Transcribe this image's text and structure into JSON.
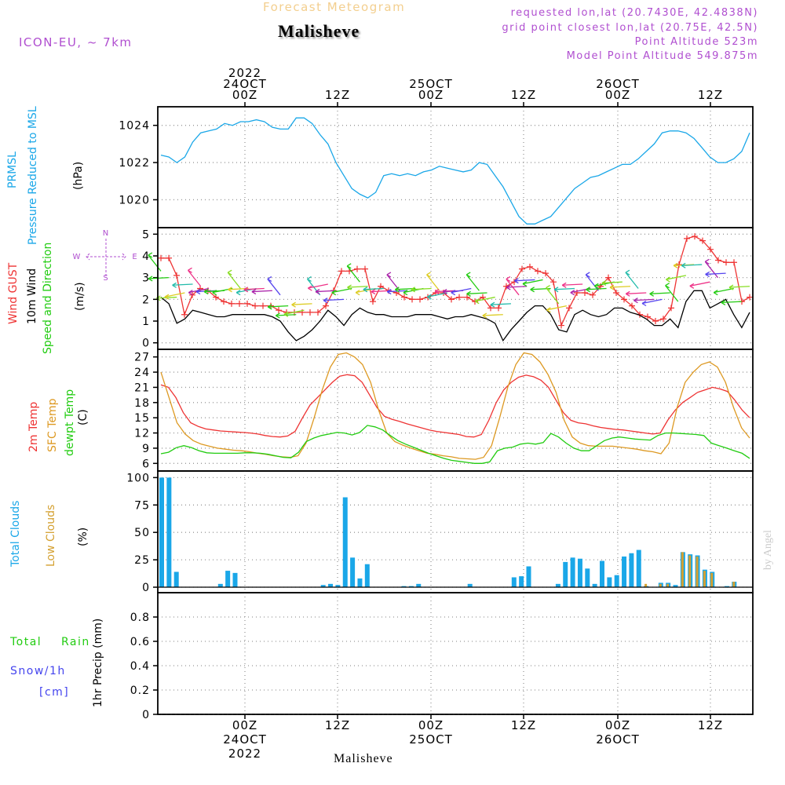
{
  "header": {
    "supertitle": "Forecast Meteogram",
    "title": "Malisheve",
    "model": "ICON-EU, ~ 7km",
    "requested": "requested lon,lat (20.7430E, 42.4838N)",
    "gridpoint": "grid point closest lon,lat (20.75E, 42.5N)",
    "point_alt": "Point Altitude 523m",
    "model_alt": "Model Point Altitude 549.875m",
    "footer": "Malisheve",
    "credit": "by Angel"
  },
  "colors": {
    "pressure": "#1aa7e8",
    "gust": "#ee3333",
    "wind": "#000000",
    "temp2m": "#ee3333",
    "sfc": "#dd9922",
    "dewpt": "#22cc11",
    "total_cloud": "#1aa7e8",
    "low_cloud": "#d4a030",
    "rain": "#22cc11",
    "snow": "#4444ee",
    "compass": "#b04fd0"
  },
  "labels": {
    "p1": [
      "PRMSL",
      "Pressure Reduced to MSL",
      "(hPa)"
    ],
    "p2": [
      "Wind GUST",
      "10m Wind",
      "Speed and Direction",
      "(m/s)"
    ],
    "p3": [
      "2m Temp",
      "SFC Temp",
      "dewpt Temp",
      "(C)"
    ],
    "p4": [
      "Total Clouds",
      "Low Clouds",
      "(%)"
    ],
    "p5": [
      "Total",
      "Rain",
      "Snow/1h",
      "[cm]",
      "1hr Precip (mm)"
    ],
    "compass": {
      "n": "N",
      "s": "S",
      "w": "W",
      "e": "E"
    }
  },
  "chart_data": {
    "type": "line",
    "x_start": "2022-10-23 06Z",
    "step": "1h",
    "x_ticks_top": [
      {
        "major": [
          "2022",
          "24OCT",
          "00Z"
        ]
      },
      {
        "major": [
          "12Z"
        ]
      },
      {
        "major": [
          "25OCT",
          "00Z"
        ]
      },
      {
        "major": [
          "12Z"
        ]
      },
      {
        "major": [
          "26OCT",
          "00Z"
        ]
      },
      {
        "major": [
          "12Z"
        ]
      }
    ],
    "x_ticks_bottom": [
      {
        "major": [
          "00Z",
          "24OCT",
          "2022"
        ]
      },
      {
        "major": [
          "12Z"
        ]
      },
      {
        "major": [
          "00Z",
          "25OCT"
        ]
      },
      {
        "major": [
          "12Z"
        ]
      },
      {
        "major": [
          "00Z",
          "26OCT"
        ]
      },
      {
        "major": [
          "12Z"
        ]
      }
    ],
    "panels": [
      {
        "id": "pressure",
        "ylim": [
          1018.5,
          1025
        ],
        "yticks": [
          "1020",
          "1022",
          "1024"
        ],
        "series": [
          {
            "name": "PRMSL",
            "values": [
              1022.4,
              1022.3,
              1022.0,
              1022.3,
              1023.1,
              1023.6,
              1023.7,
              1023.8,
              1024.1,
              1024.0,
              1024.2,
              1024.2,
              1024.3,
              1024.2,
              1023.9,
              1023.8,
              1023.8,
              1024.4,
              1024.4,
              1024.1,
              1023.5,
              1023.0,
              1022.0,
              1021.3,
              1020.6,
              1020.3,
              1020.1,
              1020.4,
              1021.3,
              1021.4,
              1021.3,
              1021.4,
              1021.3,
              1021.5,
              1021.6,
              1021.8,
              1021.7,
              1021.6,
              1021.5,
              1021.6,
              1022.0,
              1021.9,
              1021.3,
              1020.7,
              1019.9,
              1019.1,
              1018.7,
              1018.7,
              1018.9,
              1019.1,
              1019.6,
              1020.1,
              1020.6,
              1020.9,
              1021.2,
              1021.3,
              1021.5,
              1021.7,
              1021.9,
              1021.9,
              1022.2,
              1022.6,
              1023.0,
              1023.6,
              1023.7,
              1023.7,
              1023.6,
              1023.3,
              1022.8,
              1022.3,
              1022.0,
              1022.0,
              1022.2,
              1022.6,
              1023.6
            ]
          }
        ]
      },
      {
        "id": "wind",
        "ylim": [
          -0.3,
          5.3
        ],
        "yticks": [
          "0",
          "1",
          "2",
          "3",
          "4",
          "5"
        ],
        "series": [
          {
            "name": "Wind GUST",
            "values": [
              3.9,
              3.9,
              3.1,
              1.3,
              2.2,
              2.5,
              2.4,
              2.1,
              1.9,
              1.8,
              1.8,
              1.8,
              1.7,
              1.7,
              1.7,
              1.5,
              1.4,
              1.4,
              1.4,
              1.4,
              1.4,
              1.7,
              2.4,
              3.3,
              3.3,
              3.4,
              3.4,
              1.9,
              2.6,
              2.4,
              2.3,
              2.1,
              2.0,
              2.0,
              2.1,
              2.3,
              2.3,
              2.0,
              2.1,
              2.1,
              1.9,
              2.1,
              1.6,
              1.6,
              2.6,
              2.8,
              3.4,
              3.5,
              3.3,
              3.2,
              2.8,
              0.8,
              1.6,
              2.3,
              2.3,
              2.2,
              2.6,
              3.0,
              2.3,
              2.0,
              1.7,
              1.3,
              1.2,
              1.0,
              1.1,
              1.6,
              3.6,
              4.8,
              4.9,
              4.7,
              4.3,
              3.8,
              3.7,
              3.7,
              1.9,
              2.1
            ],
            "markers": "+"
          },
          {
            "name": "10m Wind",
            "values": [
              2.1,
              1.8,
              0.9,
              1.1,
              1.5,
              1.4,
              1.3,
              1.2,
              1.2,
              1.3,
              1.3,
              1.3,
              1.3,
              1.3,
              1.2,
              1.0,
              0.5,
              0.1,
              0.3,
              0.6,
              1.0,
              1.5,
              1.2,
              0.8,
              1.3,
              1.6,
              1.4,
              1.3,
              1.3,
              1.2,
              1.2,
              1.2,
              1.3,
              1.3,
              1.3,
              1.2,
              1.1,
              1.2,
              1.2,
              1.3,
              1.2,
              1.1,
              0.9,
              0.1,
              0.6,
              1.0,
              1.4,
              1.7,
              1.7,
              1.3,
              0.6,
              0.5,
              1.3,
              1.5,
              1.3,
              1.2,
              1.3,
              1.6,
              1.6,
              1.4,
              1.3,
              1.1,
              0.8,
              0.8,
              1.1,
              0.7,
              1.9,
              2.4,
              2.4,
              1.6,
              1.8,
              2.0,
              1.3,
              0.7,
              1.4
            ]
          }
        ],
        "wind_arrows": "10m wind direction arrows (colored by speed)"
      },
      {
        "id": "temp",
        "ylim": [
          4.5,
          28.5
        ],
        "yticks": [
          "6",
          "9",
          "12",
          "15",
          "18",
          "21",
          "24",
          "27"
        ],
        "series": [
          {
            "name": "2m Temp",
            "values": [
              21.5,
              21.0,
              19.0,
              16.0,
              14.0,
              13.3,
              12.8,
              12.6,
              12.4,
              12.3,
              12.2,
              12.1,
              12.0,
              11.8,
              11.5,
              11.3,
              11.2,
              11.4,
              12.3,
              15.0,
              17.5,
              19.0,
              20.5,
              22.0,
              23.2,
              23.5,
              23.3,
              22.0,
              19.5,
              17.0,
              15.3,
              14.7,
              14.3,
              13.8,
              13.4,
              13.0,
              12.6,
              12.3,
              12.1,
              11.9,
              11.7,
              11.3,
              11.2,
              11.7,
              14.5,
              18.0,
              20.5,
              22.0,
              23.0,
              23.4,
              23.1,
              22.4,
              21.0,
              18.5,
              16.0,
              14.5,
              14.0,
              13.8,
              13.4,
              13.1,
              12.9,
              12.7,
              12.6,
              12.4,
              12.2,
              12.0,
              11.8,
              12.0,
              14.5,
              16.5,
              18.0,
              19.0,
              20.0,
              20.5,
              21.0,
              20.7,
              20.2,
              18.5,
              16.5,
              15.0
            ]
          },
          {
            "name": "SFC Temp",
            "values": [
              24.0,
              19.0,
              14.0,
              11.8,
              10.5,
              9.8,
              9.4,
              9.0,
              8.8,
              8.6,
              8.5,
              8.3,
              8.0,
              7.8,
              7.5,
              7.3,
              7.2,
              7.5,
              10.0,
              15.0,
              20.5,
              25.0,
              27.5,
              27.8,
              27.0,
              25.5,
              22.0,
              16.5,
              12.0,
              10.3,
              9.6,
              9.0,
              8.5,
              8.0,
              7.8,
              7.5,
              7.3,
              7.0,
              6.9,
              6.8,
              7.2,
              9.5,
              15.0,
              21.0,
              25.5,
              27.8,
              27.5,
              26.0,
              23.5,
              20.0,
              14.5,
              11.2,
              10.0,
              9.5,
              9.4,
              9.4,
              9.4,
              9.2,
              9.0,
              8.8,
              8.5,
              8.3,
              7.9,
              10.0,
              17.0,
              22.0,
              24.0,
              25.5,
              26.0,
              25.0,
              22.0,
              17.0,
              13.0,
              11.0
            ]
          },
          {
            "name": "dewpt Temp",
            "values": [
              7.9,
              8.2,
              9.1,
              9.5,
              9.1,
              8.5,
              8.1,
              8.0,
              8.0,
              8.0,
              8.0,
              8.1,
              8.1,
              8.0,
              7.8,
              7.5,
              7.2,
              7.1,
              8.2,
              10.3,
              11.0,
              11.5,
              11.8,
              12.1,
              12.0,
              11.6,
              12.1,
              13.5,
              13.2,
              12.6,
              11.5,
              10.5,
              9.8,
              9.2,
              8.6,
              8.0,
              7.5,
              7.0,
              6.6,
              6.4,
              6.2,
              6.0,
              6.0,
              6.3,
              8.5,
              9.0,
              9.2,
              9.8,
              10.0,
              9.8,
              10.1,
              11.9,
              11.2,
              10.0,
              9.0,
              8.5,
              8.5,
              9.5,
              10.5,
              11.0,
              11.2,
              11.0,
              10.8,
              10.7,
              10.6,
              11.5,
              12.0,
              12.0,
              11.9,
              11.8,
              11.7,
              11.5,
              10.0,
              9.5,
              9.0,
              8.5,
              8.0,
              7.0
            ]
          }
        ]
      },
      {
        "id": "clouds",
        "ylim": [
          -5,
          106
        ],
        "yticks": [
          "0",
          "25",
          "50",
          "75",
          "100"
        ],
        "type": "bar",
        "series": [
          {
            "name": "Total Clouds",
            "values": [
              100,
              100,
              14,
              0,
              0,
              0,
              0,
              0,
              3,
              15,
              13,
              0,
              0,
              0,
              0,
              0,
              0,
              0,
              0,
              0,
              0,
              0,
              2,
              3,
              2,
              82,
              27,
              8,
              21,
              0,
              0,
              0,
              0,
              1,
              1,
              3,
              0,
              0,
              0,
              0,
              0,
              0,
              3,
              0,
              0,
              0,
              0,
              0,
              9,
              10,
              19,
              0,
              0,
              0,
              3,
              23,
              27,
              26,
              17,
              3,
              24,
              9,
              11,
              28,
              31,
              34,
              1,
              0,
              4,
              4,
              2,
              32,
              30,
              29,
              16,
              14,
              0,
              1,
              5,
              0,
              0
            ]
          },
          {
            "name": "Low Clouds",
            "values": [
              0,
              0,
              0,
              0,
              0,
              0,
              0,
              0,
              0,
              0,
              0,
              0,
              0,
              0,
              0,
              0,
              0,
              0,
              0,
              0,
              0,
              0,
              0,
              0,
              0,
              0,
              0,
              0,
              0,
              0,
              0,
              0,
              0,
              0,
              0,
              0,
              0,
              0,
              0,
              0,
              0,
              0,
              0,
              0,
              0,
              0,
              0,
              0,
              0,
              0,
              0,
              0,
              0,
              0,
              0,
              0,
              0,
              0,
              0,
              0,
              0,
              0,
              0,
              0,
              0,
              0,
              3,
              0,
              3,
              3,
              0,
              32,
              29,
              28,
              15,
              13,
              0,
              0,
              5,
              0,
              0
            ]
          }
        ]
      },
      {
        "id": "precip",
        "ylim": [
          0,
          1
        ],
        "yticks": [
          "0",
          "0.2",
          "0.4",
          "0.6",
          "0.8"
        ],
        "type": "bar",
        "series": [
          {
            "name": "1hr Precip",
            "values": []
          }
        ]
      }
    ]
  }
}
